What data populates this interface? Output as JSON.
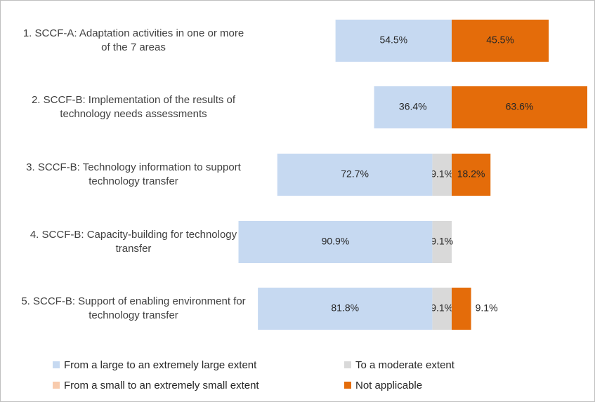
{
  "chart_data": {
    "type": "bar",
    "orientation": "horizontal",
    "stacking": "diverging",
    "categories": [
      "1. SCCF-A: Adaptation activities in one or more of the 7 areas",
      "2. SCCF-B: Implementation of the results of technology needs assessments",
      "3. SCCF-B: Technology information to support technology transfer",
      "4. SCCF-B: Capacity-building for technology transfer",
      "5. SCCF-B: Support of enabling environment for technology transfer"
    ],
    "series": [
      {
        "name": "From a large to an extremely large extent",
        "color": "#c6d9f1",
        "side": "left",
        "values": [
          54.5,
          36.4,
          72.7,
          90.9,
          81.8
        ],
        "value_labels": [
          "54.5%",
          "36.4%",
          "72.7%",
          "90.9%",
          "81.8%"
        ]
      },
      {
        "name": "To a moderate extent",
        "color": "#d9d9d9",
        "side": "left",
        "values": [
          null,
          null,
          9.1,
          9.1,
          9.1
        ],
        "value_labels": [
          null,
          null,
          "9.1%",
          "9.1%",
          "9.1%"
        ]
      },
      {
        "name": "From a small to an extremely small extent",
        "color": "#f8cbad",
        "side": "left",
        "values": [
          null,
          null,
          null,
          null,
          null
        ],
        "value_labels": [
          null,
          null,
          null,
          null,
          null
        ]
      },
      {
        "name": "Not applicable",
        "color": "#e46c0a",
        "side": "right",
        "values": [
          45.5,
          63.6,
          18.2,
          null,
          9.1
        ],
        "value_labels": [
          "45.5%",
          "63.6%",
          "18.2%",
          null,
          "9.1%"
        ]
      }
    ],
    "legend": "bottom"
  }
}
